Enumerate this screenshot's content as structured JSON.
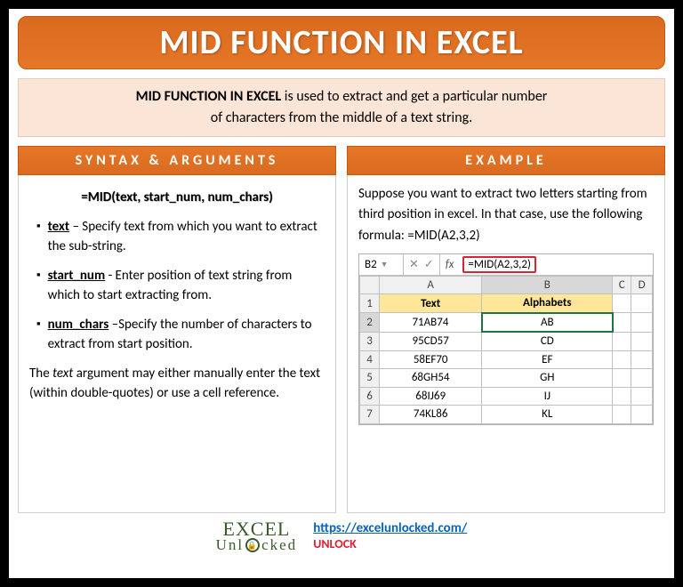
{
  "title": "MID FUNCTION IN EXCEL",
  "description": {
    "lead": "MID FUNCTION IN EXCEL",
    "rest1": " is used to extract and get a particular number",
    "rest2": "of characters from the middle of a text string."
  },
  "left": {
    "header": "SYNTAX & ARGUMENTS",
    "syntax": "=MID(text, start_num, num_chars)",
    "args": [
      {
        "name": "text",
        "desc": " – Specify text from which you want to extract the sub-string."
      },
      {
        "name": "start_num",
        "desc": " - Enter position of text string from which to start extracting from."
      },
      {
        "name": "num_chars",
        "desc": " –Specify the number of characters to extract from start position."
      }
    ],
    "note_pre": "The ",
    "note_it": "text",
    "note_post": " argument may either manually enter the text (within double-quotes) or use a cell reference."
  },
  "right": {
    "header": "EXAMPLE",
    "text": "Suppose you want to extract two letters starting from third position in excel. In that case, use the following formula: =MID(A2,3,2)",
    "excel": {
      "cellref": "B2",
      "formula": "=MID(A2,3,2)",
      "cols": [
        "",
        "A",
        "B",
        "C",
        "D"
      ],
      "headers": [
        "Text",
        "Alphabets"
      ],
      "rows": [
        [
          "71AB74",
          "AB"
        ],
        [
          "95CD57",
          "CD"
        ],
        [
          "58EF70",
          "EF"
        ],
        [
          "68GH54",
          "GH"
        ],
        [
          "68IJ69",
          "IJ"
        ],
        [
          "74KL86",
          "KL"
        ]
      ]
    }
  },
  "footer": {
    "logo_top": "EXCEL",
    "logo_bot_pre": "Unl",
    "logo_bot_post": "cked",
    "url": "https://excelunlocked.com/",
    "unlock": "UNLOCK"
  },
  "colors": {
    "orange": "#e67728",
    "orange_dark": "#c55a10",
    "peach": "#fbe5d6",
    "link": "#0563c1",
    "red": "#d23",
    "excel_green": "#217346",
    "yellow_header": "#ffe699"
  }
}
